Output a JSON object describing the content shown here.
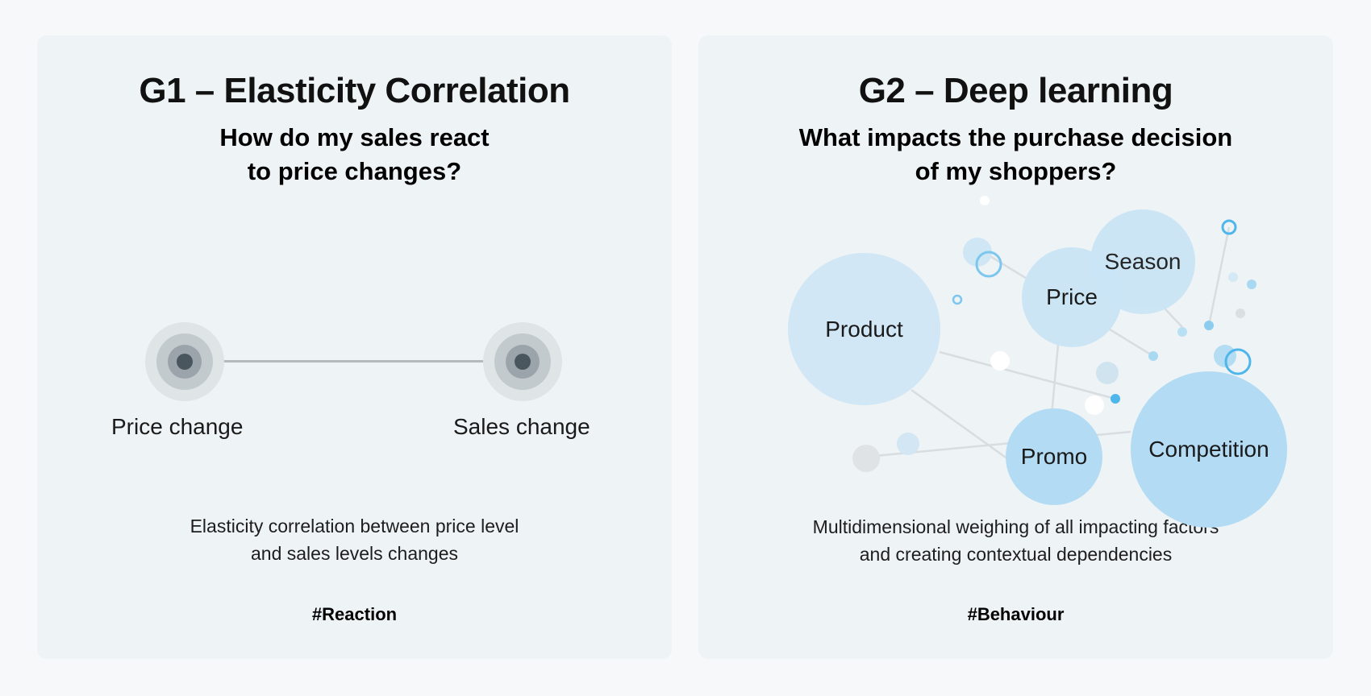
{
  "g1": {
    "title": "G1 – Elasticity Correlation",
    "subtitle_line1": "How do my sales react",
    "subtitle_line2": "to price changes?",
    "nodes": [
      "Price change",
      "Sales change"
    ],
    "desc_line1": "Elasticity correlation between price level",
    "desc_line2": "and sales levels changes",
    "tag": "#Reaction",
    "accent_color": "#838d94"
  },
  "g2": {
    "title": "G2 – Deep learning",
    "subtitle_line1": "What impacts the purchase decision",
    "subtitle_line2": "of my shoppers?",
    "factors": [
      "Product",
      "Price",
      "Season",
      "Promo",
      "Competition"
    ],
    "desc_line1": "Multidimensional weighing of all impacting factors",
    "desc_line2": "and creating contextual dependencies",
    "tag": "#Behaviour",
    "accent_color": "#2fa9e8"
  }
}
